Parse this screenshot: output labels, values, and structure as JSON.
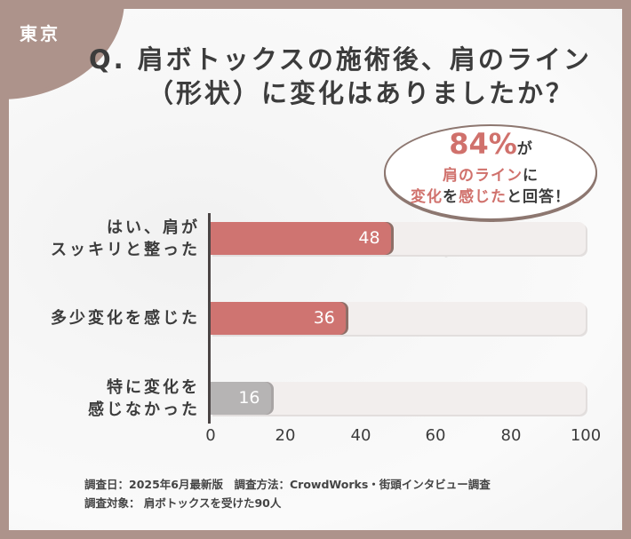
{
  "badge": {
    "city": "東京"
  },
  "title": {
    "line1": "Q. 肩ボトックスの施術後、肩のライン",
    "line2": "（形状）に変化はありましたか？"
  },
  "callout": {
    "percent": "84%",
    "ga": "が",
    "line2_accent": "肩のライン",
    "line2_rest": "に",
    "line3_a": "変化",
    "line3_b": "を",
    "line3_c": "感じた",
    "line3_d": "と回答！"
  },
  "colors": {
    "frame": "#ad938b",
    "accent": "#cf7471",
    "gray_bar": "#b6b4b4",
    "track": "#f2eeed",
    "text": "#3c3c3c"
  },
  "chart_data": {
    "type": "bar",
    "orientation": "horizontal",
    "title": "Q. 肩ボトックスの施術後、肩のライン（形状）に変化はありましたか？",
    "categories": [
      "はい、肩がスッキリと整った",
      "多少変化を感じた",
      "特に変化を感じなかった"
    ],
    "category_lines": [
      [
        "はい、肩が",
        "スッキリと整った"
      ],
      [
        "多少変化を感じた"
      ],
      [
        "特に変化を",
        "感じなかった"
      ]
    ],
    "values": [
      48,
      36,
      16
    ],
    "value_labels": [
      "48",
      "36",
      "16"
    ],
    "bar_colors": [
      "#cf7471",
      "#cf7471",
      "#b6b4b4"
    ],
    "xlabel": "",
    "ylabel": "",
    "xlim": [
      0,
      100
    ],
    "xticks": [
      "0",
      "20",
      "40",
      "60",
      "80",
      "100"
    ],
    "grid": false,
    "legend": null,
    "annotation": "84%が肩のラインに変化を感じたと回答！"
  },
  "footer": {
    "line1": "調査日：2025年6月最新版　調査方法：CrowdWorks・街頭インタビュー調査",
    "line2": "調査対象： 肩ボトックスを受けた90人"
  }
}
